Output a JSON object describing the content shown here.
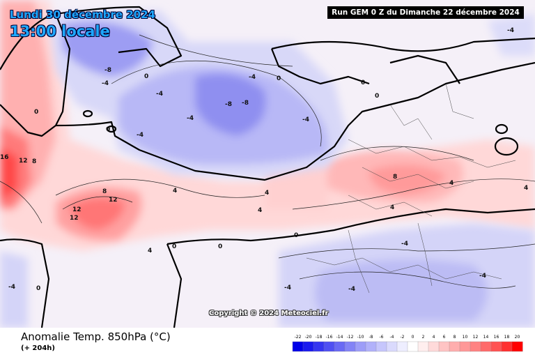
{
  "header": {
    "date_line": "Lundi 30 décembre 2024",
    "time_line": "13:00 locale",
    "run_info": "Run GEM 0 Z du Dimanche 22 décembre 2024"
  },
  "footer": {
    "title": "Anomalie Temp. 850hPa (°C)",
    "lead_time": "(+ 204h)"
  },
  "copyright": "Copyright © 2024 Meteociel.fr",
  "legend": {
    "values": [
      "-22",
      "-20",
      "-18",
      "-16",
      "-14",
      "-12",
      "-10",
      "-8",
      "-6",
      "-4",
      "-2",
      "0",
      "2",
      "4",
      "6",
      "8",
      "10",
      "12",
      "14",
      "16",
      "18",
      "20"
    ],
    "colors": [
      "#0000e8",
      "#1a1aee",
      "#3535f0",
      "#4f4ff2",
      "#6969f4",
      "#8383f6",
      "#9d9df8",
      "#b1b1fa",
      "#c6c6fc",
      "#dadafd",
      "#eeeeff",
      "#ffffff",
      "#ffeeee",
      "#ffdada",
      "#ffc4c4",
      "#ffaeae",
      "#ff9898",
      "#ff8282",
      "#ff6a6a",
      "#ff5252",
      "#ff3030",
      "#ff0000"
    ]
  },
  "map_labels": [
    {
      "text": "-8"
    },
    {
      "text": "-8"
    },
    {
      "text": "-8"
    },
    {
      "text": "-4"
    },
    {
      "text": "-4"
    },
    {
      "text": "-4"
    },
    {
      "text": "-4"
    },
    {
      "text": "-4"
    },
    {
      "text": "-4"
    },
    {
      "text": "-4"
    },
    {
      "text": "0"
    },
    {
      "text": "0"
    },
    {
      "text": "0"
    },
    {
      "text": "0"
    },
    {
      "text": "0"
    },
    {
      "text": "0"
    },
    {
      "text": "0"
    },
    {
      "text": "0"
    },
    {
      "text": "4"
    },
    {
      "text": "4"
    },
    {
      "text": "4"
    },
    {
      "text": "4"
    },
    {
      "text": "8"
    },
    {
      "text": "8"
    },
    {
      "text": "8"
    },
    {
      "text": "12"
    },
    {
      "text": "12"
    },
    {
      "text": "12"
    },
    {
      "text": "12"
    },
    {
      "text": "16"
    },
    {
      "text": "-4"
    },
    {
      "text": "-4"
    },
    {
      "text": "-4"
    },
    {
      "text": "-4"
    },
    {
      "text": "0"
    },
    {
      "text": "4"
    },
    {
      "text": "4"
    },
    {
      "text": "-4"
    },
    {
      "text": "0"
    },
    {
      "text": "4"
    }
  ],
  "colors": {
    "land_outline": "#000000",
    "contour": "#222222"
  }
}
